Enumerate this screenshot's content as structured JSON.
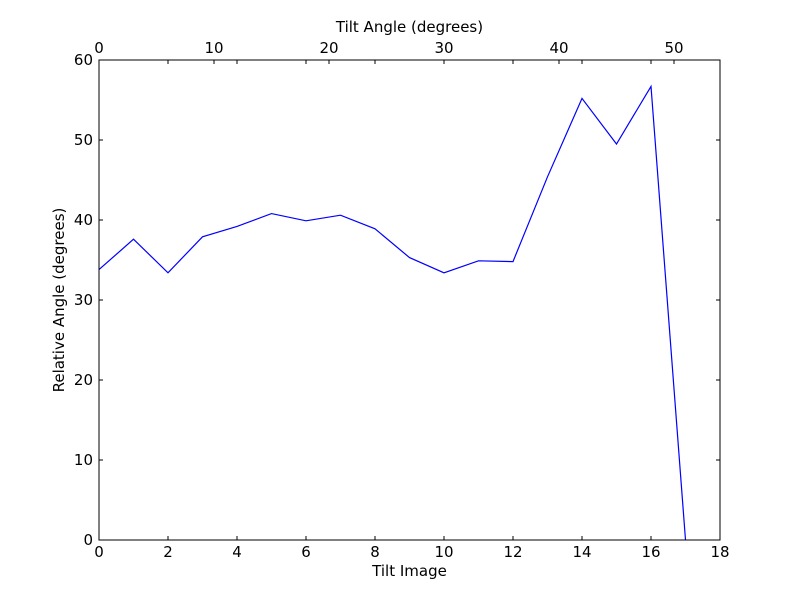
{
  "chart_data": {
    "type": "line",
    "title": "",
    "xlabel": "Tilt Image",
    "ylabel": "Relative Angle (degrees)",
    "x2label": "Tilt Angle (degrees)",
    "xlim": [
      0,
      18
    ],
    "ylim": [
      0,
      60
    ],
    "x2lim": [
      0,
      54
    ],
    "xticks": [
      0,
      2,
      4,
      6,
      8,
      10,
      12,
      14,
      16,
      18
    ],
    "yticks": [
      0,
      10,
      20,
      30,
      40,
      50,
      60
    ],
    "x2ticks": [
      0,
      10,
      20,
      30,
      40,
      50
    ],
    "grid": false,
    "series": [
      {
        "color": "#0000ff",
        "x": [
          0,
          1,
          2,
          3,
          4,
          5,
          6,
          7,
          8,
          9,
          10,
          11,
          12,
          13,
          14,
          15,
          16,
          17
        ],
        "y": [
          33.8,
          37.6,
          33.4,
          37.9,
          39.2,
          40.8,
          39.9,
          40.6,
          38.9,
          35.3,
          33.4,
          34.9,
          34.8,
          45.4,
          55.2,
          49.5,
          56.7,
          0.0
        ]
      }
    ]
  }
}
